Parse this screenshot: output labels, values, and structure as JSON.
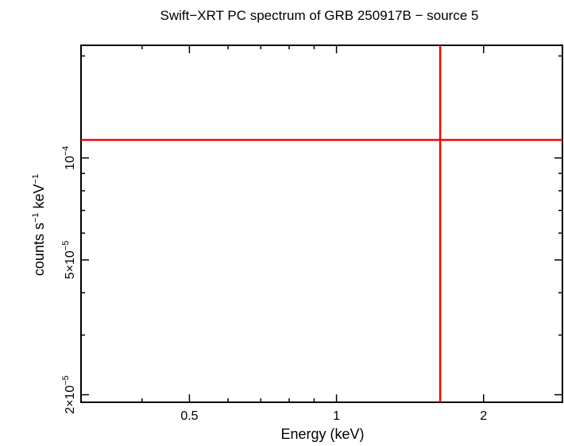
{
  "chart_data": {
    "type": "line",
    "title": "Swift−XRT PC spectrum of GRB 250917B − source 5",
    "xlabel": "Energy (keV)",
    "ylabel": {
      "base1": "counts s",
      "exp1": "−1",
      "base2": " keV",
      "exp2": "−1"
    },
    "x_scale": "log",
    "y_scale": "log",
    "xlim": [
      0.3,
      2.9
    ],
    "ylim": [
      1.9e-05,
      0.000215
    ],
    "x_ticks": [
      {
        "value": 0.5,
        "label": "0.5"
      },
      {
        "value": 1,
        "label": "1"
      },
      {
        "value": 2,
        "label": "2"
      }
    ],
    "y_ticks": [
      {
        "value": 2e-05,
        "mant": "2×10",
        "exp": "−5"
      },
      {
        "value": 5e-05,
        "mant": "5×10",
        "exp": "−5"
      },
      {
        "value": 0.0001,
        "mant": "10",
        "exp": "−4"
      }
    ],
    "series": [
      {
        "kind": "hline",
        "y": 0.000113,
        "color": "#ff0000"
      },
      {
        "kind": "vline",
        "x": 1.63,
        "color": "#ff0000"
      }
    ],
    "grid": false,
    "legend": "none"
  }
}
